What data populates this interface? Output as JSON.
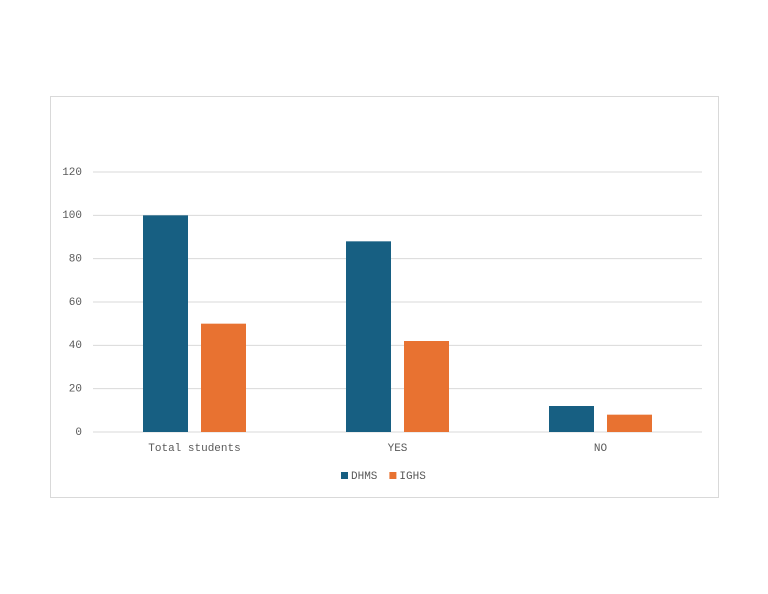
{
  "chart_data": {
    "type": "bar",
    "categories": [
      "Total students",
      "YES",
      "NO"
    ],
    "series": [
      {
        "name": "DHMS",
        "color": "#175f82",
        "values": [
          100,
          88,
          12
        ]
      },
      {
        "name": "IGHS",
        "color": "#e87231",
        "values": [
          50,
          42,
          8
        ]
      }
    ],
    "ylim": [
      0,
      120
    ],
    "yticks": [
      0,
      20,
      40,
      60,
      80,
      100,
      120
    ],
    "grid": true,
    "legend": "bottom"
  }
}
